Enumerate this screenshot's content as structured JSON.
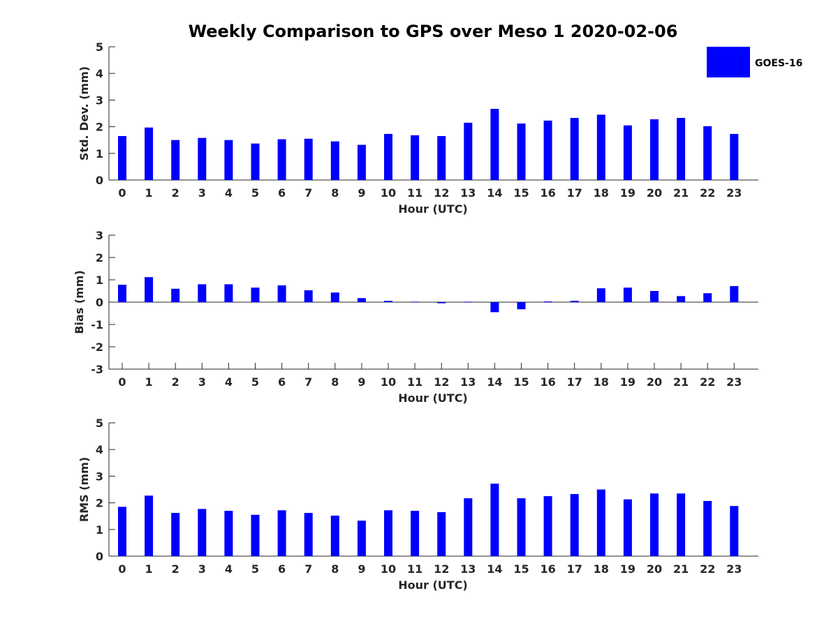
{
  "title": "Weekly Comparison to GPS over Meso 1 2020-02-06",
  "legend": {
    "label": "GOES-16",
    "color": "#0000ff",
    "placement": "top-right"
  },
  "chart_data": [
    {
      "type": "bar",
      "xlabel": "Hour (UTC)",
      "ylabel": "Std. Dev. (mm)",
      "ylim": [
        0,
        5
      ],
      "yticks": [
        0,
        1,
        2,
        3,
        4,
        5
      ],
      "categories": [
        "0",
        "1",
        "2",
        "3",
        "4",
        "5",
        "6",
        "7",
        "8",
        "9",
        "10",
        "11",
        "12",
        "13",
        "14",
        "15",
        "16",
        "17",
        "18",
        "19",
        "20",
        "21",
        "22",
        "23"
      ],
      "series": [
        {
          "name": "GOES-16",
          "color": "#0000ff",
          "values": [
            1.65,
            1.97,
            1.5,
            1.58,
            1.5,
            1.37,
            1.53,
            1.55,
            1.45,
            1.32,
            1.73,
            1.68,
            1.65,
            2.15,
            2.67,
            2.12,
            2.23,
            2.33,
            2.45,
            2.05,
            2.28,
            2.33,
            2.02,
            1.73
          ]
        }
      ]
    },
    {
      "type": "bar",
      "xlabel": "Hour (UTC)",
      "ylabel": "Bias (mm)",
      "ylim": [
        -3,
        3
      ],
      "yticks": [
        -3,
        -2,
        -1,
        0,
        1,
        2,
        3
      ],
      "zero_line": true,
      "categories": [
        "0",
        "1",
        "2",
        "3",
        "4",
        "5",
        "6",
        "7",
        "8",
        "9",
        "10",
        "11",
        "12",
        "13",
        "14",
        "15",
        "16",
        "17",
        "18",
        "19",
        "20",
        "21",
        "22",
        "23"
      ],
      "series": [
        {
          "name": "GOES-16",
          "color": "#0000ff",
          "values": [
            0.78,
            1.12,
            0.6,
            0.8,
            0.8,
            0.65,
            0.75,
            0.53,
            0.43,
            0.18,
            0.06,
            0.02,
            -0.05,
            0.02,
            -0.45,
            -0.32,
            0.03,
            0.06,
            0.62,
            0.65,
            0.5,
            0.27,
            0.4,
            0.72
          ]
        }
      ]
    },
    {
      "type": "bar",
      "xlabel": "Hour (UTC)",
      "ylabel": "RMS (mm)",
      "ylim": [
        0,
        5
      ],
      "yticks": [
        0,
        1,
        2,
        3,
        4,
        5
      ],
      "categories": [
        "0",
        "1",
        "2",
        "3",
        "4",
        "5",
        "6",
        "7",
        "8",
        "9",
        "10",
        "11",
        "12",
        "13",
        "14",
        "15",
        "16",
        "17",
        "18",
        "19",
        "20",
        "21",
        "22",
        "23"
      ],
      "series": [
        {
          "name": "GOES-16",
          "color": "#0000ff",
          "values": [
            1.85,
            2.27,
            1.62,
            1.77,
            1.7,
            1.55,
            1.72,
            1.62,
            1.52,
            1.33,
            1.72,
            1.7,
            1.65,
            2.17,
            2.72,
            2.17,
            2.25,
            2.33,
            2.5,
            2.13,
            2.35,
            2.35,
            2.07,
            1.88
          ]
        }
      ]
    }
  ]
}
